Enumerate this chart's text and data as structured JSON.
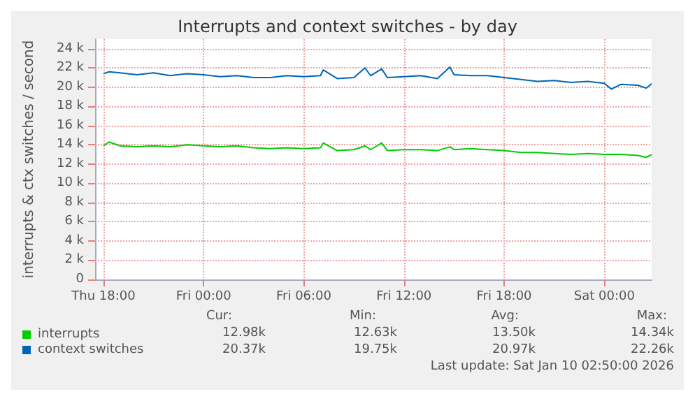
{
  "chart_data": {
    "type": "line",
    "title": "Interrupts and context switches - by day",
    "ylabel": "interrupts & ctx switches / second",
    "x": [
      "2026-01-08T18:00",
      "2026-01-08T18:20",
      "2026-01-08T19:00",
      "2026-01-08T20:00",
      "2026-01-08T21:00",
      "2026-01-08T22:00",
      "2026-01-08T23:00",
      "2026-01-09T00:00",
      "2026-01-09T01:00",
      "2026-01-09T02:00",
      "2026-01-09T03:00",
      "2026-01-09T04:00",
      "2026-01-09T05:00",
      "2026-01-09T06:00",
      "2026-01-09T07:00",
      "2026-01-09T07:10",
      "2026-01-09T08:00",
      "2026-01-09T09:00",
      "2026-01-09T09:40",
      "2026-01-09T10:00",
      "2026-01-09T10:40",
      "2026-01-09T11:00",
      "2026-01-09T12:00",
      "2026-01-09T13:00",
      "2026-01-09T14:00",
      "2026-01-09T14:45",
      "2026-01-09T15:00",
      "2026-01-09T16:00",
      "2026-01-09T17:00",
      "2026-01-09T18:00",
      "2026-01-09T19:00",
      "2026-01-09T20:00",
      "2026-01-09T21:00",
      "2026-01-09T22:00",
      "2026-01-09T23:00",
      "2026-01-10T00:00",
      "2026-01-10T00:25",
      "2026-01-10T01:00",
      "2026-01-10T02:00",
      "2026-01-10T02:30",
      "2026-01-10T02:50"
    ],
    "series": [
      {
        "name": "interrupts",
        "color": "#00cc00",
        "values": [
          13900,
          14300,
          13900,
          13800,
          13900,
          13800,
          14000,
          13900,
          13800,
          13900,
          13700,
          13600,
          13700,
          13600,
          13700,
          14200,
          13400,
          13500,
          13900,
          13500,
          14200,
          13400,
          13500,
          13500,
          13400,
          13800,
          13500,
          13600,
          13500,
          13400,
          13200,
          13200,
          13100,
          13000,
          13100,
          13000,
          13000,
          13000,
          12900,
          12700,
          12980
        ]
      },
      {
        "name": "context switches",
        "color": "#0066b3",
        "values": [
          21400,
          21600,
          21500,
          21300,
          21500,
          21200,
          21400,
          21300,
          21100,
          21200,
          21000,
          21000,
          21200,
          21100,
          21200,
          21800,
          20900,
          21000,
          22000,
          21200,
          21900,
          21000,
          21100,
          21200,
          20900,
          22100,
          21300,
          21200,
          21200,
          21000,
          20800,
          20600,
          20700,
          20500,
          20600,
          20400,
          19800,
          20300,
          20200,
          19900,
          20370
        ]
      }
    ],
    "xlim": [
      "2026-01-08T17:30",
      "2026-01-10T02:50"
    ],
    "xticks": [
      {
        "value": "2026-01-08T18:00",
        "label": "Thu 18:00"
      },
      {
        "value": "2026-01-09T00:00",
        "label": "Fri 00:00"
      },
      {
        "value": "2026-01-09T06:00",
        "label": "Fri 06:00"
      },
      {
        "value": "2026-01-09T12:00",
        "label": "Fri 12:00"
      },
      {
        "value": "2026-01-09T18:00",
        "label": "Fri 18:00"
      },
      {
        "value": "2026-01-10T00:00",
        "label": "Sat 00:00"
      }
    ],
    "ylim": [
      0,
      25000
    ],
    "yticks": [
      0,
      {
        "value": 2000,
        "label": "2 k"
      },
      {
        "value": 4000,
        "label": "4 k"
      },
      {
        "value": 6000,
        "label": "6 k"
      },
      {
        "value": 8000,
        "label": "8 k"
      },
      {
        "value": 10000,
        "label": "10 k"
      },
      {
        "value": 12000,
        "label": "12 k"
      },
      {
        "value": 14000,
        "label": "14 k"
      },
      {
        "value": 16000,
        "label": "16 k"
      },
      {
        "value": 18000,
        "label": "18 k"
      },
      {
        "value": 20000,
        "label": "20 k"
      },
      {
        "value": 22000,
        "label": "22 k"
      },
      {
        "value": 24000,
        "label": "24 k"
      }
    ],
    "grid": true,
    "legend": "bottom left",
    "marker": "none",
    "line_style": "solid",
    "annotations": [
      "Cur:",
      "Min:",
      "Avg:",
      "Max:",
      "12.98k",
      "12.63k",
      "13.50k",
      "14.34k",
      "20.37k",
      "19.75k",
      "20.97k",
      "22.26k",
      "Last update: Sat Jan 10 02:50:00 2026"
    ]
  }
}
